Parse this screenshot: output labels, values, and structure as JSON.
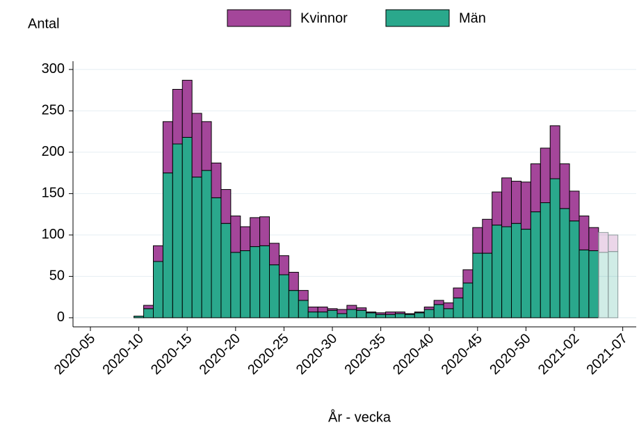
{
  "chart_data": {
    "type": "stacked-bar",
    "ylabel": "Antal",
    "xlabel": "År - vecka",
    "categories": [
      "2020-04",
      "2020-05",
      "2020-06",
      "2020-07",
      "2020-08",
      "2020-09",
      "2020-10",
      "2020-11",
      "2020-12",
      "2020-13",
      "2020-14",
      "2020-15",
      "2020-16",
      "2020-17",
      "2020-18",
      "2020-19",
      "2020-20",
      "2020-21",
      "2020-22",
      "2020-23",
      "2020-24",
      "2020-25",
      "2020-26",
      "2020-27",
      "2020-28",
      "2020-29",
      "2020-30",
      "2020-31",
      "2020-32",
      "2020-33",
      "2020-34",
      "2020-35",
      "2020-36",
      "2020-37",
      "2020-38",
      "2020-39",
      "2020-40",
      "2020-41",
      "2020-42",
      "2020-43",
      "2020-44",
      "2020-45",
      "2020-46",
      "2020-47",
      "2020-48",
      "2020-49",
      "2020-50",
      "2020-51",
      "2020-52",
      "2020-53",
      "2021-01",
      "2021-02",
      "2021-03",
      "2021-04",
      "2021-05",
      "2021-06",
      "2021-07",
      "2021-08"
    ],
    "xticks": [
      "2020-05",
      "2020-10",
      "2020-15",
      "2020-20",
      "2020-25",
      "2020-30",
      "2020-35",
      "2020-40",
      "2020-45",
      "2020-50",
      "2021-02",
      "2021-07"
    ],
    "provisional": [
      "2021-05",
      "2021-06"
    ],
    "series": [
      {
        "name": "Män",
        "color": "#2aa88c",
        "values": [
          null,
          null,
          null,
          null,
          null,
          null,
          2,
          11,
          68,
          175,
          210,
          218,
          170,
          178,
          145,
          114,
          79,
          81,
          86,
          87,
          64,
          52,
          33,
          21,
          7,
          7,
          9,
          5,
          10,
          9,
          6,
          4,
          4,
          5,
          4,
          6,
          10,
          16,
          11,
          24,
          42,
          78,
          78,
          112,
          110,
          114,
          107,
          128,
          139,
          168,
          132,
          117,
          82,
          81,
          79,
          80,
          null,
          null
        ]
      },
      {
        "name": "Kvinnor",
        "color": "#a4469a",
        "values": [
          null,
          null,
          null,
          null,
          null,
          null,
          0,
          4,
          19,
          62,
          66,
          69,
          77,
          59,
          42,
          41,
          44,
          29,
          35,
          35,
          26,
          23,
          22,
          12,
          6,
          6,
          2,
          5,
          5,
          3,
          1,
          2,
          3,
          2,
          1,
          1,
          3,
          5,
          7,
          12,
          16,
          31,
          41,
          40,
          59,
          51,
          57,
          58,
          66,
          64,
          54,
          36,
          41,
          28,
          24,
          20,
          null,
          null
        ]
      }
    ],
    "ylim": [
      -11,
      310
    ],
    "yticks": [
      0,
      50,
      100,
      150,
      200,
      250,
      300
    ],
    "grid": true
  }
}
